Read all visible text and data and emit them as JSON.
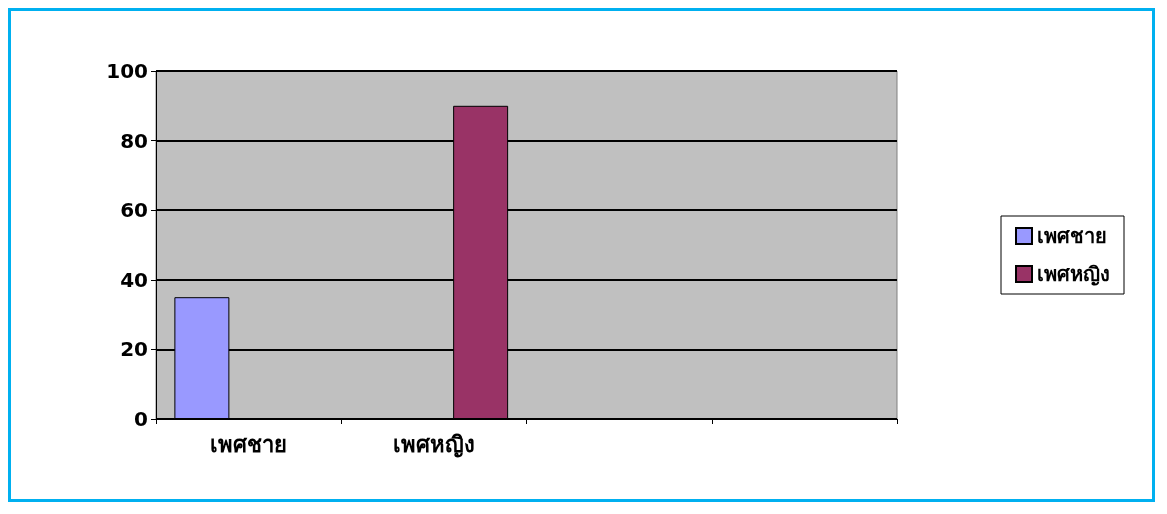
{
  "chart_data": {
    "type": "bar",
    "categories": [
      "เพศชาย",
      "เพศหญิง",
      null,
      null
    ],
    "series": [
      {
        "name": "เพศชาย",
        "color": "#9999ff",
        "values": [
          35,
          null,
          null,
          null
        ]
      },
      {
        "name": "เพศหญิง",
        "color": "#993366",
        "values": [
          null,
          90,
          null,
          null
        ]
      }
    ],
    "ylim": [
      0,
      100
    ],
    "yticks": [
      0,
      20,
      40,
      60,
      80,
      100
    ],
    "grid": "y",
    "legend": "right"
  }
}
